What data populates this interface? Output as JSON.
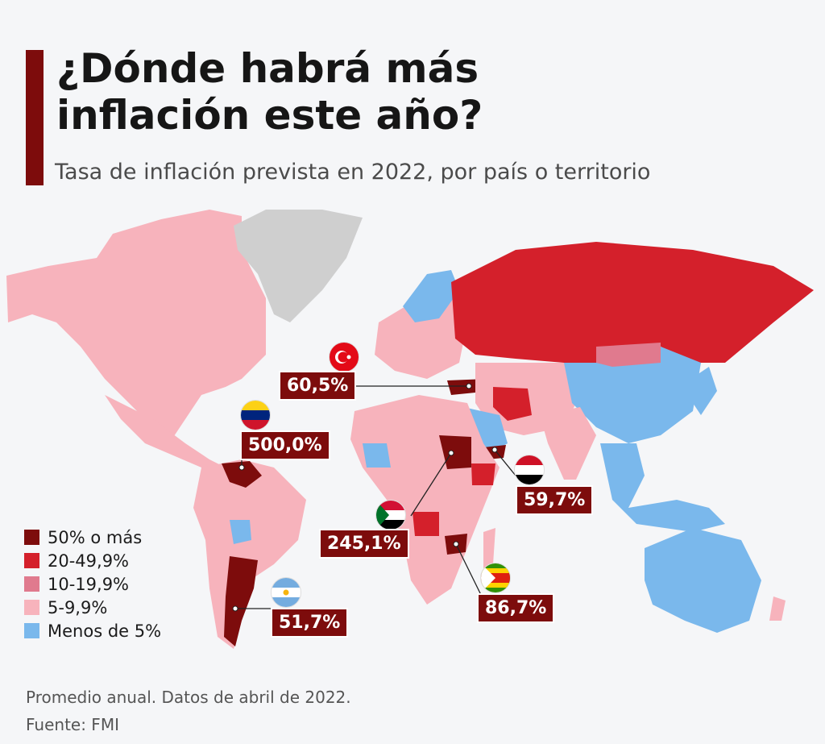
{
  "header": {
    "title_line1": "¿Dónde habrá más",
    "title_line2": "inflación este año?",
    "subtitle": "Tasa de inflación prevista en 2022, por país o territorio"
  },
  "legend": [
    {
      "label": "50% o más",
      "color": "#7d0c0c"
    },
    {
      "label": "20-49,9%",
      "color": "#d4202b"
    },
    {
      "label": "10-19,9%",
      "color": "#e07a8e"
    },
    {
      "label": "5-9,9%",
      "color": "#f7b3bc"
    },
    {
      "label": "Menos de 5%",
      "color": "#7ab8ec"
    }
  ],
  "callouts": {
    "turkey": {
      "label": "60,5%",
      "flag": "turkey-flag"
    },
    "venezuela": {
      "label": "500,0%",
      "flag": "venezuela-flag"
    },
    "yemen": {
      "label": "59,7%",
      "flag": "yemen-flag"
    },
    "sudan": {
      "label": "245,1%",
      "flag": "sudan-flag"
    },
    "zimbabwe": {
      "label": "86,7%",
      "flag": "zimbabwe-flag"
    },
    "argentina": {
      "label": "51,7%",
      "flag": "argentina-flag"
    }
  },
  "colors": {
    "no_data": "#cfcfcf",
    "accent": "#7d0c0c"
  },
  "footer": {
    "note": "Promedio anual. Datos de abril de 2022.",
    "source": "Fuente: FMI"
  }
}
